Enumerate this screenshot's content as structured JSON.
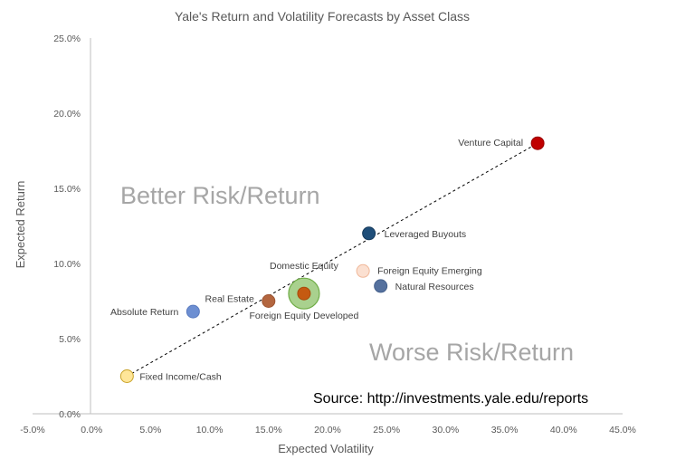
{
  "chart_data": {
    "type": "scatter",
    "title": "Yale's Return and Volatility Forecasts by Asset Class",
    "xlabel": "Expected Volatility",
    "ylabel": "Expected Return",
    "xlim": [
      -0.05,
      0.45
    ],
    "ylim": [
      0.0,
      0.25
    ],
    "x_ticks": [
      "-5.0%",
      "0.0%",
      "5.0%",
      "10.0%",
      "15.0%",
      "20.0%",
      "25.0%",
      "30.0%",
      "35.0%",
      "40.0%",
      "45.0%"
    ],
    "y_ticks": [
      "0.0%",
      "5.0%",
      "10.0%",
      "15.0%",
      "20.0%",
      "25.0%"
    ],
    "grid": false,
    "points": [
      {
        "label": "Fixed Income/Cash",
        "x": 0.03,
        "y": 0.025,
        "color": "#ffe699",
        "stroke": "#c9a227"
      },
      {
        "label": "Absolute Return",
        "x": 0.086,
        "y": 0.068,
        "color": "#6d8fd2",
        "stroke": "#5a7bbf"
      },
      {
        "label": "Real Estate",
        "x": 0.15,
        "y": 0.075,
        "color": "#b3663f",
        "stroke": "#9e5532"
      },
      {
        "label": "Domestic Equity",
        "x": 0.18,
        "y": 0.08,
        "color": "#a9d18e",
        "stroke": "#70ad47",
        "big": true
      },
      {
        "label": "Foreign Equity Developed",
        "x": 0.18,
        "y": 0.08,
        "color": "#c55a11",
        "stroke": "#a84b0c"
      },
      {
        "label": "Foreign Equity Emerging",
        "x": 0.23,
        "y": 0.095,
        "color": "#fbe0d1",
        "stroke": "#f0b89a"
      },
      {
        "label": "Natural Resources",
        "x": 0.245,
        "y": 0.085,
        "color": "#55719e",
        "stroke": "#44608c"
      },
      {
        "label": "Leveraged Buyouts",
        "x": 0.235,
        "y": 0.12,
        "color": "#1f4e79",
        "stroke": "#163a5c"
      },
      {
        "label": "Venture Capital",
        "x": 0.378,
        "y": 0.18,
        "color": "#c00000",
        "stroke": "#9a0000"
      }
    ],
    "trendline": {
      "from": [
        0.03,
        0.025
      ],
      "to": [
        0.378,
        0.18
      ],
      "style": "dashed"
    },
    "annotations": {
      "better": "Better Risk/Return",
      "worse": "Worse Risk/Return",
      "source": "Source: http://investments.yale.edu/reports"
    }
  }
}
